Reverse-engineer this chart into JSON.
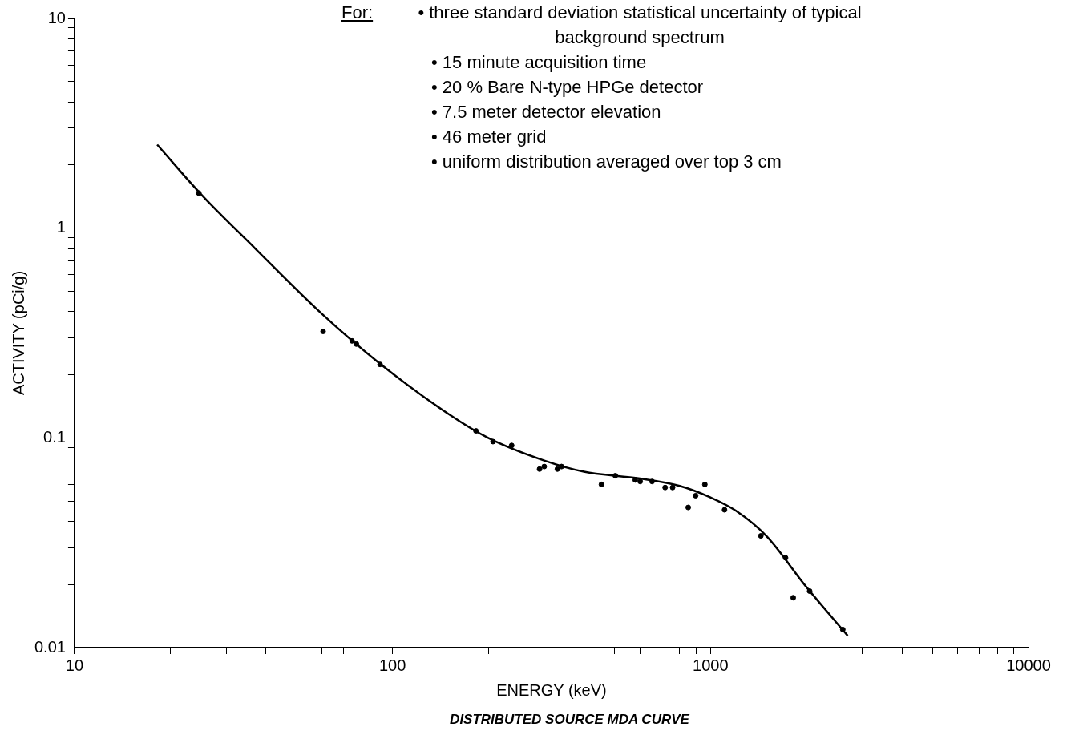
{
  "chart_data": {
    "type": "scatter",
    "title": "DISTRIBUTED SOURCE MDA CURVE",
    "xlabel": "ENERGY (keV)",
    "ylabel": "ACTIVITY (pCi/g)",
    "annotations": [
      "For:",
      "• three standard deviation statistical uncertainty of typical background spectrum",
      "• 15 minute acquisition time",
      "• 20 % Bare N-type HPGe detector",
      "• 7.5 meter detector elevation",
      "• 46 meter grid",
      "• uniform distribution averaged over top 3 cm"
    ],
    "log": "xy",
    "grid": false,
    "legend": false,
    "xlim": [
      10,
      10000
    ],
    "ylim": [
      0.01,
      10
    ],
    "xticks": [
      10,
      {
        "value": 20,
        "label": null
      },
      {
        "value": 30,
        "label": null
      },
      {
        "value": 40,
        "label": null
      },
      {
        "value": 50,
        "label": null
      },
      {
        "value": 60,
        "label": null
      },
      {
        "value": 70,
        "label": null
      },
      {
        "value": 80,
        "label": null
      },
      {
        "value": 90,
        "label": null
      },
      100,
      {
        "value": 200,
        "label": null
      },
      {
        "value": 300,
        "label": null
      },
      {
        "value": 400,
        "label": null
      },
      {
        "value": 500,
        "label": null
      },
      {
        "value": 600,
        "label": null
      },
      {
        "value": 700,
        "label": null
      },
      {
        "value": 800,
        "label": null
      },
      {
        "value": 900,
        "label": null
      },
      1000,
      {
        "value": 2000,
        "label": null
      },
      {
        "value": 3000,
        "label": null
      },
      {
        "value": 4000,
        "label": null
      },
      {
        "value": 5000,
        "label": null
      },
      {
        "value": 6000,
        "label": null
      },
      {
        "value": 7000,
        "label": null
      },
      {
        "value": 8000,
        "label": null
      },
      {
        "value": 9000,
        "label": null
      },
      10000
    ],
    "yticks": [
      0.01,
      {
        "value": 0.02,
        "label": null
      },
      {
        "value": 0.03,
        "label": null
      },
      {
        "value": 0.04,
        "label": null
      },
      {
        "value": 0.05,
        "label": null
      },
      {
        "value": 0.06,
        "label": null
      },
      {
        "value": 0.07,
        "label": null
      },
      {
        "value": 0.08,
        "label": null
      },
      {
        "value": 0.09,
        "label": null
      },
      0.1,
      {
        "value": 0.2,
        "label": null
      },
      {
        "value": 0.3,
        "label": null
      },
      {
        "value": 0.4,
        "label": null
      },
      {
        "value": 0.5,
        "label": null
      },
      {
        "value": 0.6,
        "label": null
      },
      {
        "value": 0.7,
        "label": null
      },
      {
        "value": 0.8,
        "label": null
      },
      {
        "value": 0.9,
        "label": null
      },
      1,
      {
        "value": 2,
        "label": null
      },
      {
        "value": 3,
        "label": null
      },
      {
        "value": 4,
        "label": null
      },
      {
        "value": 5,
        "label": null
      },
      {
        "value": 6,
        "label": null
      },
      {
        "value": 7,
        "label": null
      },
      {
        "value": 8,
        "label": null
      },
      {
        "value": 9,
        "label": null
      },
      10
    ],
    "series": [
      {
        "type": "scatter",
        "color": "#000000",
        "marker": "circle",
        "x": [
          24.6,
          60.5,
          74.6,
          77,
          91.4,
          183,
          207,
          237,
          290,
          300,
          330,
          340,
          454,
          502,
          580,
          601,
          655,
          720,
          760,
          851,
          898,
          960,
          1107,
          1440,
          1722,
          1820,
          2050,
          2606
        ],
        "values": [
          1.47,
          0.322,
          0.29,
          0.28,
          0.224,
          0.108,
          0.096,
          0.092,
          0.071,
          0.073,
          0.071,
          0.073,
          0.06,
          0.066,
          0.063,
          0.062,
          0.062,
          0.058,
          0.058,
          0.0466,
          0.053,
          0.06,
          0.0454,
          0.0341,
          0.0268,
          0.0173,
          0.0186,
          0.0122
        ]
      },
      {
        "type": "line",
        "color": "#000000",
        "marker": "none",
        "line_style": "solid",
        "x": [
          18.2,
          25,
          37,
          60,
          90,
          150,
          200,
          300,
          400,
          600,
          800,
          1000,
          1200,
          1500,
          2000,
          2700
        ],
        "values": [
          2.5,
          1.45,
          0.8,
          0.39,
          0.23,
          0.13,
          0.1,
          0.078,
          0.069,
          0.064,
          0.059,
          0.052,
          0.045,
          0.034,
          0.0195,
          0.0114
        ]
      }
    ]
  }
}
